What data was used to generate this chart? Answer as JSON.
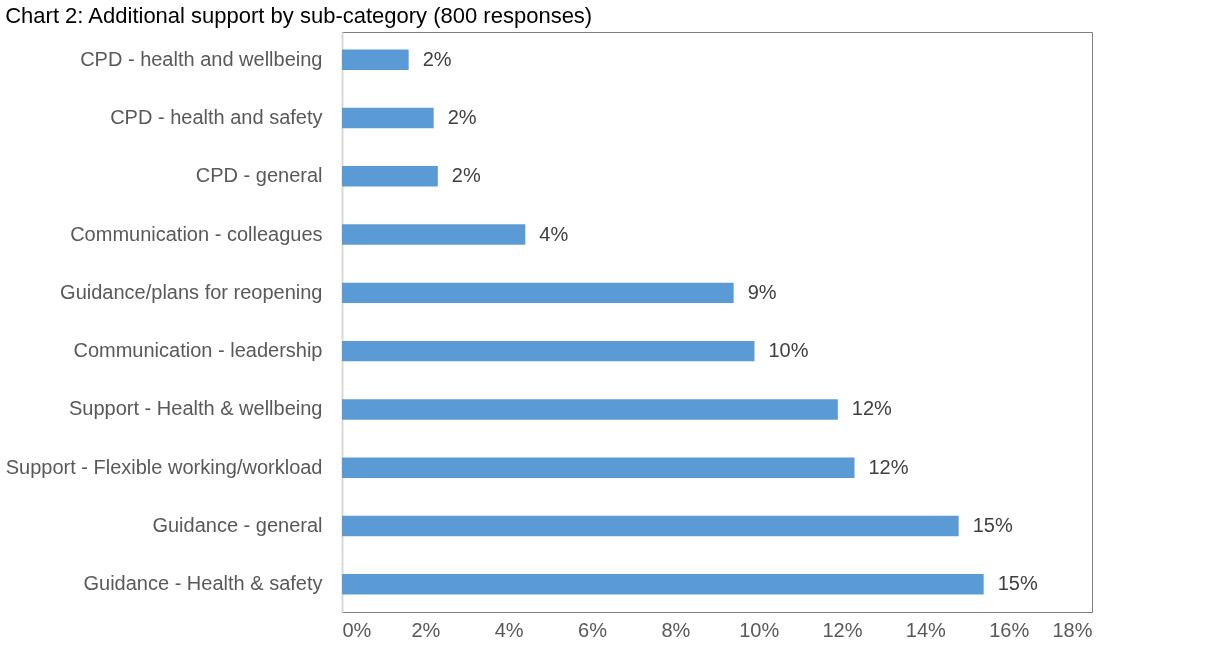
{
  "chart_data": {
    "type": "bar",
    "orientation": "horizontal",
    "title": "Chart 2: Additional support by sub-category (800 responses)",
    "categories": [
      "CPD - health and wellbeing",
      "CPD - health and safety",
      "CPD - general",
      "Communication - colleagues",
      "Guidance/plans for reopening",
      "Communication - leadership",
      "Support - Health & wellbeing ",
      "Support - Flexible working/workload",
      "Guidance - general",
      "Guidance - Health & safety"
    ],
    "values": [
      1.6,
      2.2,
      2.3,
      4.4,
      9.4,
      9.9,
      11.9,
      12.3,
      14.8,
      15.4
    ],
    "value_labels": [
      "2%",
      "2%",
      "2%",
      "4%",
      "9%",
      "10%",
      "12%",
      "12%",
      "15%",
      "15%"
    ],
    "color": "#5b9bd5",
    "xlim": [
      0,
      18
    ],
    "xticks": [
      {
        "value": 0,
        "label": "0%"
      },
      {
        "value": 2,
        "label": "2%"
      },
      {
        "value": 4,
        "label": "4%"
      },
      {
        "value": 6,
        "label": "6%"
      },
      {
        "value": 8,
        "label": "8%"
      },
      {
        "value": 10,
        "label": "10%"
      },
      {
        "value": 12,
        "label": "12%"
      },
      {
        "value": 14,
        "label": "14%"
      },
      {
        "value": 16,
        "label": "16%"
      },
      {
        "value": 18,
        "label": "18%"
      }
    ],
    "grid": false
  }
}
